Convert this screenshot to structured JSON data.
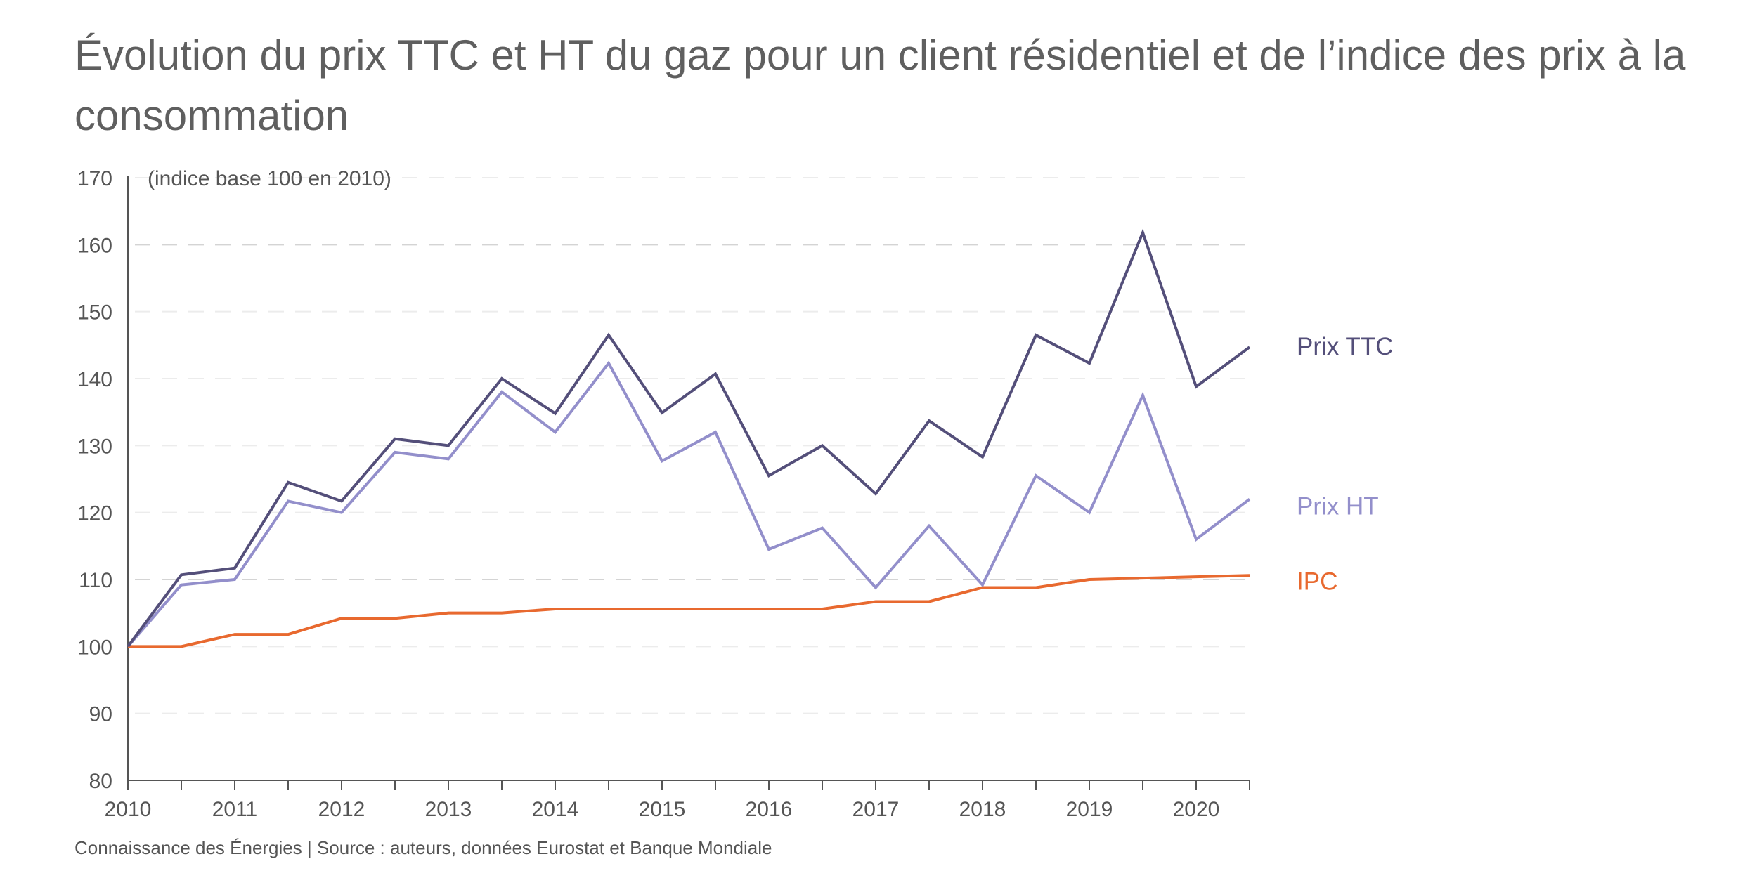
{
  "chart_data": {
    "type": "line",
    "title": "Évolution du prix TTC et HT du gaz pour un client résidentiel et de l’indice des prix à la consommation",
    "annotation": "(indice base 100 en 2010)",
    "source": "Connaissance des Énergies | Source : auteurs, données Eurostat et Banque Mondiale",
    "xlabel": "",
    "ylabel": "",
    "x": [
      2010,
      2010.5,
      2011,
      2011.5,
      2012,
      2012.5,
      2013,
      2013.5,
      2014,
      2014.5,
      2015,
      2015.5,
      2016,
      2016.5,
      2017,
      2017.5,
      2018,
      2018.5,
      2019,
      2019.5,
      2020,
      2020.5
    ],
    "x_ticks": [
      "2010",
      "2011",
      "2012",
      "2013",
      "2014",
      "2015",
      "2016",
      "2017",
      "2018",
      "2019",
      "2020"
    ],
    "y_ticks": [
      "80",
      "90",
      "100",
      "110",
      "120",
      "130",
      "140",
      "150",
      "160",
      "170"
    ],
    "xlim": [
      2010,
      2020.5
    ],
    "ylim": [
      80,
      170
    ],
    "grid": "dashed horizontal",
    "legend": "inline-right",
    "series": [
      {
        "name": "Prix TTC",
        "color": "#544f7a",
        "values": [
          100,
          110.7,
          111.7,
          124.5,
          121.7,
          131,
          130,
          140,
          134.8,
          146.5,
          134.9,
          140.7,
          125.5,
          130,
          122.8,
          133.7,
          128.3,
          146.5,
          142.3,
          161.8,
          138.8,
          144.7
        ]
      },
      {
        "name": "Prix HT",
        "color": "#938fcb",
        "values": [
          100,
          109.2,
          110,
          121.7,
          120,
          129,
          128,
          138,
          132,
          142.3,
          127.7,
          132,
          114.5,
          117.7,
          108.8,
          118,
          109.2,
          125.5,
          120,
          137.5,
          116,
          122
        ]
      },
      {
        "name": "IPC",
        "color": "#e8692f",
        "values": [
          100,
          100,
          101.8,
          101.8,
          104.2,
          104.2,
          105,
          105,
          105.6,
          105.6,
          105.6,
          105.6,
          105.6,
          105.6,
          106.7,
          106.7,
          108.8,
          108.8,
          110,
          110.2,
          110.4,
          110.6
        ]
      }
    ]
  }
}
